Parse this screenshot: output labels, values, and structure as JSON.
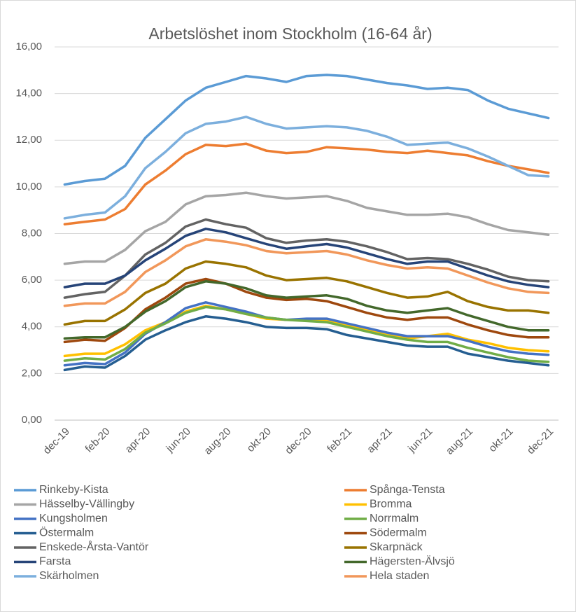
{
  "chart_data": {
    "type": "line",
    "title": "Arbetslöshet inom Stockholm (16-64 år)",
    "categories": [
      "dec-19",
      null,
      "feb-20",
      null,
      "apr-20",
      null,
      "jun-20",
      null,
      "aug-20",
      null,
      "okt-20",
      null,
      "dec-20",
      null,
      "feb-21",
      null,
      "apr-21",
      null,
      "jun-21",
      null,
      "aug-21",
      null,
      "okt-21",
      null,
      "dec-21"
    ],
    "ylim": [
      0,
      16
    ],
    "yticks": [
      {
        "value": 0,
        "label": "0,00"
      },
      {
        "value": 2,
        "label": "2,00"
      },
      {
        "value": 4,
        "label": "4,00"
      },
      {
        "value": 6,
        "label": "6,00"
      },
      {
        "value": 8,
        "label": "8,00"
      },
      {
        "value": 10,
        "label": "10,00"
      },
      {
        "value": 12,
        "label": "12,00"
      },
      {
        "value": 14,
        "label": "14,00"
      },
      {
        "value": 16,
        "label": "16,00"
      }
    ],
    "grid": true,
    "legend": "bottom",
    "series": [
      {
        "name": "Rinkeby-Kista",
        "color": "#5b9bd5",
        "values": [
          10.1,
          10.25,
          10.35,
          10.9,
          12.1,
          12.9,
          13.7,
          14.25,
          14.5,
          14.75,
          14.65,
          14.5,
          14.75,
          14.8,
          14.75,
          14.6,
          14.45,
          14.35,
          14.2,
          14.25,
          14.15,
          13.7,
          13.35,
          13.15,
          12.95
        ]
      },
      {
        "name": "Spånga-Tensta",
        "color": "#ed7d31",
        "values": [
          8.4,
          8.5,
          8.6,
          9.05,
          10.1,
          10.7,
          11.4,
          11.8,
          11.75,
          11.85,
          11.55,
          11.45,
          11.5,
          11.7,
          11.65,
          11.6,
          11.5,
          11.45,
          11.55,
          11.45,
          11.35,
          11.1,
          10.9,
          10.75,
          10.6
        ]
      },
      {
        "name": "Hässelby-Vällingby",
        "color": "#a5a5a5",
        "values": [
          6.7,
          6.8,
          6.8,
          7.3,
          8.1,
          8.5,
          9.25,
          9.6,
          9.65,
          9.75,
          9.6,
          9.5,
          9.55,
          9.6,
          9.4,
          9.1,
          8.95,
          8.8,
          8.8,
          8.85,
          8.7,
          8.4,
          8.15,
          8.05,
          7.95
        ]
      },
      {
        "name": "Bromma",
        "color": "#ffc000",
        "values": [
          2.75,
          2.85,
          2.85,
          3.25,
          3.85,
          4.2,
          4.65,
          4.9,
          4.75,
          4.55,
          4.35,
          4.3,
          4.3,
          4.25,
          4.1,
          3.85,
          3.65,
          3.5,
          3.6,
          3.7,
          3.45,
          3.3,
          3.1,
          3.0,
          2.95
        ]
      },
      {
        "name": "Kungsholmen",
        "color": "#4472c4",
        "values": [
          2.35,
          2.45,
          2.4,
          2.9,
          3.7,
          4.2,
          4.8,
          5.05,
          4.85,
          4.65,
          4.4,
          4.3,
          4.35,
          4.35,
          4.15,
          3.95,
          3.75,
          3.6,
          3.6,
          3.6,
          3.4,
          3.15,
          2.95,
          2.85,
          2.8
        ]
      },
      {
        "name": "Norrmalm",
        "color": "#70ad47",
        "values": [
          2.55,
          2.65,
          2.6,
          3.05,
          3.75,
          4.15,
          4.6,
          4.85,
          4.75,
          4.55,
          4.4,
          4.3,
          4.25,
          4.2,
          4.0,
          3.8,
          3.6,
          3.45,
          3.35,
          3.35,
          3.1,
          2.9,
          2.7,
          2.55,
          2.5
        ]
      },
      {
        "name": "Östermalm",
        "color": "#255e91",
        "values": [
          2.15,
          2.3,
          2.25,
          2.75,
          3.45,
          3.85,
          4.2,
          4.45,
          4.35,
          4.2,
          4.0,
          3.95,
          3.95,
          3.9,
          3.65,
          3.5,
          3.35,
          3.2,
          3.15,
          3.15,
          2.85,
          2.7,
          2.55,
          2.45,
          2.35
        ]
      },
      {
        "name": "Södermalm",
        "color": "#9e480e",
        "values": [
          3.35,
          3.45,
          3.4,
          3.95,
          4.75,
          5.25,
          5.85,
          6.05,
          5.85,
          5.5,
          5.25,
          5.15,
          5.2,
          5.1,
          4.85,
          4.6,
          4.4,
          4.3,
          4.4,
          4.4,
          4.1,
          3.85,
          3.65,
          3.55,
          3.55
        ]
      },
      {
        "name": "Enskede-Årsta-Vantör",
        "color": "#636363",
        "values": [
          5.25,
          5.4,
          5.5,
          6.2,
          7.1,
          7.6,
          8.3,
          8.6,
          8.4,
          8.25,
          7.8,
          7.6,
          7.7,
          7.75,
          7.65,
          7.45,
          7.2,
          6.9,
          6.95,
          6.9,
          6.7,
          6.45,
          6.15,
          6.0,
          5.95
        ]
      },
      {
        "name": "Skarpnäck",
        "color": "#997300",
        "values": [
          4.1,
          4.25,
          4.25,
          4.75,
          5.45,
          5.85,
          6.5,
          6.8,
          6.7,
          6.55,
          6.2,
          6.0,
          6.05,
          6.1,
          5.95,
          5.7,
          5.45,
          5.25,
          5.3,
          5.5,
          5.1,
          4.85,
          4.7,
          4.7,
          4.6
        ]
      },
      {
        "name": "Farsta",
        "color": "#264478",
        "values": [
          5.7,
          5.85,
          5.85,
          6.2,
          6.85,
          7.35,
          7.9,
          8.2,
          8.05,
          7.8,
          7.55,
          7.35,
          7.45,
          7.55,
          7.4,
          7.15,
          6.9,
          6.7,
          6.8,
          6.8,
          6.5,
          6.2,
          5.95,
          5.8,
          5.7
        ]
      },
      {
        "name": "Hägersten-Älvsjö",
        "color": "#43682b",
        "values": [
          3.5,
          3.55,
          3.55,
          4.0,
          4.65,
          5.1,
          5.7,
          5.95,
          5.85,
          5.65,
          5.35,
          5.25,
          5.3,
          5.35,
          5.2,
          4.9,
          4.7,
          4.6,
          4.7,
          4.8,
          4.5,
          4.25,
          4.0,
          3.85,
          3.85
        ]
      },
      {
        "name": "Skärholmen",
        "color": "#7cafdd",
        "values": [
          8.65,
          8.8,
          8.9,
          9.6,
          10.8,
          11.5,
          12.3,
          12.7,
          12.8,
          13.0,
          12.7,
          12.5,
          12.55,
          12.6,
          12.55,
          12.4,
          12.15,
          11.8,
          11.85,
          11.9,
          11.65,
          11.3,
          10.9,
          10.5,
          10.45
        ]
      },
      {
        "name": "Hela staden",
        "color": "#f1975a",
        "values": [
          4.9,
          5.0,
          5.0,
          5.5,
          6.35,
          6.85,
          7.45,
          7.75,
          7.65,
          7.5,
          7.25,
          7.15,
          7.2,
          7.25,
          7.1,
          6.85,
          6.65,
          6.5,
          6.55,
          6.5,
          6.2,
          5.9,
          5.65,
          5.5,
          5.45
        ]
      }
    ]
  }
}
